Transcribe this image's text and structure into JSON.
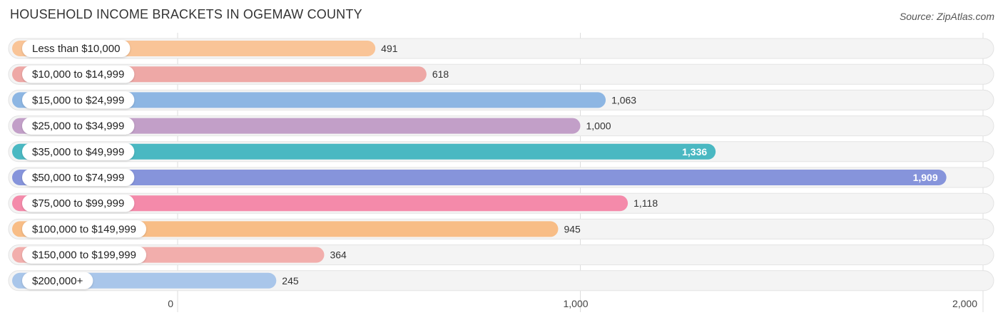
{
  "title": "HOUSEHOLD INCOME BRACKETS IN OGEMAW COUNTY",
  "source": "Source: ZipAtlas.com",
  "chart_data": {
    "type": "bar",
    "orientation": "horizontal",
    "title": "HOUSEHOLD INCOME BRACKETS IN OGEMAW COUNTY",
    "xlabel": "",
    "ylabel": "",
    "categories": [
      "Less than $10,000",
      "$10,000 to $14,999",
      "$15,000 to $24,999",
      "$25,000 to $34,999",
      "$35,000 to $49,999",
      "$50,000 to $74,999",
      "$75,000 to $99,999",
      "$100,000 to $149,999",
      "$150,000 to $199,999",
      "$200,000+"
    ],
    "values": [
      491,
      618,
      1063,
      1000,
      1336,
      1909,
      1118,
      945,
      364,
      245
    ],
    "value_labels": [
      "491",
      "618",
      "1,063",
      "1,000",
      "1,336",
      "1,909",
      "1,118",
      "945",
      "364",
      "245"
    ],
    "colors": [
      "#f9c497",
      "#eea8a6",
      "#8db6e3",
      "#c29fc8",
      "#4ab8c2",
      "#8694db",
      "#f48aaa",
      "#f8bd86",
      "#f2aeac",
      "#a9c6ea"
    ],
    "xlim": [
      0,
      2000
    ],
    "xticks": [
      0,
      1000,
      2000
    ],
    "xtick_labels": [
      "0",
      "1,000",
      "2,000"
    ],
    "grid": true,
    "legend": "none"
  }
}
